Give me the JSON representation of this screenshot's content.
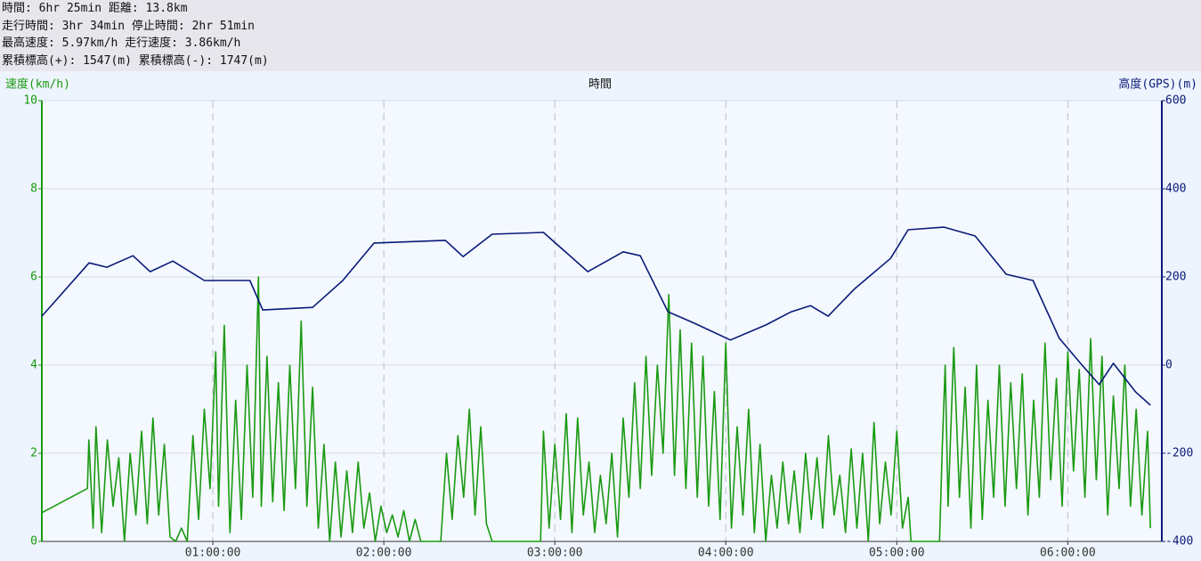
{
  "header": {
    "lines": [
      "時間: 6hr 25min 距離: 13.8km",
      "走行時間: 3hr 34min 停止時間: 2hr 51min",
      "最高速度: 5.97km/h 走行速度: 3.86km/h",
      "累積標高(+): 1547(m) 累積標高(-): 1747(m)"
    ]
  },
  "chart_data": {
    "type": "line",
    "x_label": "時間",
    "y_label": "速度(km/h)",
    "y2_label": "高度(GPS)(m)",
    "xlim": [
      0,
      393
    ],
    "xticks": [
      {
        "value": 60,
        "label": "01:00:00"
      },
      {
        "value": 120,
        "label": "02:00:00"
      },
      {
        "value": 180,
        "label": "03:00:00"
      },
      {
        "value": 240,
        "label": "04:00:00"
      },
      {
        "value": 300,
        "label": "05:00:00"
      },
      {
        "value": 360,
        "label": "06:00:00"
      }
    ],
    "ylim": [
      0,
      10
    ],
    "yticks": [
      0,
      2,
      4,
      6,
      8,
      10
    ],
    "y2lim": [
      -400,
      600
    ],
    "y2ticks": [
      -400,
      -200,
      0,
      200,
      400,
      600
    ],
    "grid": true,
    "series": [
      {
        "color": "#1a9a12",
        "axis": "y",
        "x": [
          0,
          16,
          16.5,
          18,
          19,
          21,
          23,
          25,
          27,
          29,
          31,
          33,
          35,
          37,
          39,
          41,
          43,
          45,
          47,
          49,
          51,
          53,
          55,
          57,
          59,
          61,
          62,
          64,
          66,
          68,
          70,
          72,
          74,
          76,
          77,
          79,
          81,
          83,
          85,
          87,
          89,
          91,
          93,
          95,
          97,
          99,
          101,
          103,
          105,
          107,
          109,
          111,
          113,
          115,
          117,
          119,
          121,
          123,
          125,
          127,
          129,
          131,
          133,
          140,
          142,
          144,
          146,
          148,
          150,
          152,
          154,
          156,
          158,
          175,
          176,
          178,
          180,
          182,
          184,
          186,
          188,
          190,
          192,
          194,
          196,
          198,
          200,
          202,
          204,
          206,
          208,
          210,
          212,
          214,
          216,
          218,
          220,
          222,
          224,
          226,
          228,
          230,
          232,
          234,
          236,
          238,
          240,
          242,
          244,
          246,
          248,
          250,
          252,
          254,
          256,
          258,
          260,
          262,
          264,
          266,
          268,
          270,
          272,
          274,
          276,
          278,
          280,
          282,
          284,
          286,
          288,
          290,
          292,
          294,
          296,
          298,
          300,
          302,
          304,
          305,
          315,
          316,
          317,
          318,
          320,
          322,
          324,
          326,
          328,
          330,
          332,
          334,
          336,
          338,
          340,
          342,
          344,
          346,
          348,
          350,
          352,
          354,
          356,
          358,
          360,
          362,
          364,
          366,
          368,
          370,
          372,
          374,
          376,
          378,
          380,
          382,
          384,
          386,
          388,
          389
        ],
        "values": [
          0.65,
          1.2,
          2.3,
          0.3,
          2.6,
          0.2,
          2.3,
          0.8,
          1.9,
          0.0,
          2.0,
          0.6,
          2.5,
          0.4,
          2.8,
          0.6,
          2.2,
          0.1,
          0.0,
          0.3,
          0.0,
          2.4,
          0.5,
          3.0,
          1.2,
          4.3,
          0.8,
          4.9,
          0.2,
          3.2,
          0.5,
          4.0,
          1.0,
          6.0,
          0.8,
          4.2,
          0.9,
          3.6,
          0.7,
          4.0,
          1.2,
          5.0,
          0.8,
          3.5,
          0.3,
          2.2,
          0.0,
          1.8,
          0.1,
          1.6,
          0.2,
          1.8,
          0.3,
          1.1,
          0.0,
          0.8,
          0.2,
          0.6,
          0.1,
          0.7,
          0.0,
          0.5,
          0.0,
          0.0,
          2.0,
          0.5,
          2.4,
          1.0,
          3.0,
          0.6,
          2.6,
          0.4,
          0.0,
          0.0,
          2.5,
          0.3,
          2.2,
          0.5,
          2.9,
          0.2,
          2.8,
          0.6,
          1.8,
          0.2,
          1.5,
          0.4,
          2.0,
          0.1,
          2.8,
          1.0,
          3.6,
          1.2,
          4.2,
          1.5,
          4.0,
          2.0,
          5.6,
          1.5,
          4.8,
          1.2,
          4.5,
          1.0,
          4.2,
          0.8,
          3.4,
          0.5,
          4.5,
          0.3,
          2.6,
          0.6,
          3.0,
          0.2,
          2.2,
          0.0,
          1.5,
          0.3,
          1.8,
          0.4,
          1.6,
          0.2,
          2.0,
          0.5,
          1.9,
          0.3,
          2.4,
          0.6,
          1.5,
          0.2,
          2.1,
          0.3,
          2.0,
          0.0,
          2.7,
          0.4,
          1.8,
          0.6,
          2.5,
          0.3,
          1.0,
          0.0,
          0.0,
          2.2,
          4.0,
          0.8,
          4.4,
          1.0,
          3.5,
          0.3,
          4.0,
          0.5,
          3.2,
          1.0,
          4.0,
          0.8,
          3.6,
          1.2,
          3.8,
          0.6,
          3.2,
          1.0,
          4.5,
          1.4,
          3.7,
          0.8,
          4.3,
          1.6,
          3.9,
          1.0,
          4.6,
          1.4,
          4.2,
          0.6,
          3.3,
          1.2,
          4.0,
          0.8,
          3.0,
          0.6,
          2.5,
          0.3
        ]
      },
      {
        "color": "#0a1a78",
        "axis": "y2",
        "x": [
          0,
          16.6,
          22.8,
          32,
          38,
          46,
          57,
          73,
          77.5,
          95,
          105.6,
          116.6,
          141.6,
          147.8,
          158,
          176,
          191.6,
          204,
          210,
          219.7,
          229,
          241.6,
          254,
          263,
          269.7,
          275.9,
          285,
          297.8,
          304,
          316.6,
          327.5,
          338.4,
          347.8,
          357,
          365,
          371,
          376,
          383.8,
          389
        ],
        "values": [
          111,
          232,
          222,
          248,
          212,
          236,
          192,
          192,
          125,
          131,
          192,
          277,
          283,
          246,
          297,
          301,
          212,
          257,
          248,
          121,
          95,
          57,
          91,
          121,
          135,
          111,
          172,
          242,
          307,
          313,
          293,
          206,
          192,
          61,
          0,
          -44,
          4,
          -61,
          -91
        ]
      }
    ]
  }
}
